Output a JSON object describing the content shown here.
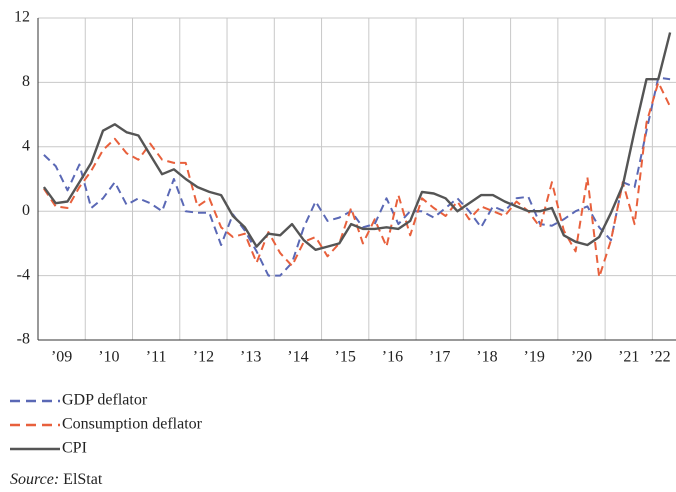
{
  "chart_data": {
    "type": "line",
    "x": [
      2009.125,
      2009.375,
      2009.625,
      2009.875,
      2010.125,
      2010.375,
      2010.625,
      2010.875,
      2011.125,
      2011.375,
      2011.625,
      2011.875,
      2012.125,
      2012.375,
      2012.625,
      2012.875,
      2013.125,
      2013.375,
      2013.625,
      2013.875,
      2014.125,
      2014.375,
      2014.625,
      2014.875,
      2015.125,
      2015.375,
      2015.625,
      2015.875,
      2016.125,
      2016.375,
      2016.625,
      2016.875,
      2017.125,
      2017.375,
      2017.625,
      2017.875,
      2018.125,
      2018.375,
      2018.625,
      2018.875,
      2019.125,
      2019.375,
      2019.625,
      2019.875,
      2020.125,
      2020.375,
      2020.625,
      2020.875,
      2021.125,
      2021.375,
      2021.625,
      2021.875,
      2022.125,
      2022.375
    ],
    "series": [
      {
        "name": "GDP deflator",
        "color": "#5a68b5",
        "dash": true,
        "values": [
          3.5,
          2.8,
          1.3,
          2.9,
          0.2,
          0.8,
          1.8,
          0.4,
          0.8,
          0.5,
          0.0,
          2.0,
          0.0,
          -0.1,
          -0.1,
          -2.1,
          -0.2,
          -1.2,
          -2.5,
          -4.0,
          -4.0,
          -3.2,
          -1.0,
          0.6,
          -0.6,
          -0.4,
          0.0,
          -1.0,
          -0.8,
          0.8,
          -0.8,
          0.0,
          0.0,
          -0.4,
          0.2,
          0.8,
          0.0,
          -1.0,
          0.3,
          0.0,
          0.8,
          0.9,
          -0.8,
          -0.9,
          -0.5,
          0.0,
          0.3,
          -1.0,
          -1.8,
          1.8,
          1.5,
          5.0,
          8.3,
          8.2
        ]
      },
      {
        "name": "Consumption deflator",
        "color": "#e8603c",
        "dash": true,
        "values": [
          1.4,
          0.3,
          0.2,
          1.5,
          2.5,
          3.8,
          4.5,
          3.6,
          3.2,
          4.2,
          3.2,
          3.0,
          3.0,
          0.3,
          0.8,
          -1.0,
          -1.6,
          -1.4,
          -3.2,
          -1.3,
          -2.6,
          -3.4,
          -1.9,
          -1.6,
          -2.8,
          -2.0,
          0.2,
          -2.0,
          -0.5,
          -2.2,
          1.0,
          -1.5,
          0.8,
          0.2,
          -0.3,
          0.6,
          -0.5,
          0.3,
          0.0,
          -0.3,
          0.6,
          0.0,
          -1.0,
          1.8,
          -1.2,
          -2.5,
          2.1,
          -4.1,
          -1.8,
          1.8,
          -0.8,
          5.5,
          8.0,
          6.5
        ]
      },
      {
        "name": "CPI",
        "color": "#555555",
        "dash": false,
        "values": [
          1.5,
          0.5,
          0.6,
          1.8,
          3.0,
          5.0,
          5.4,
          4.9,
          4.7,
          3.5,
          2.3,
          2.6,
          2.0,
          1.5,
          1.2,
          1.0,
          -0.3,
          -1.0,
          -2.2,
          -1.4,
          -1.5,
          -0.8,
          -1.8,
          -2.4,
          -2.2,
          -2.0,
          -0.8,
          -1.1,
          -1.1,
          -1.0,
          -1.1,
          -0.6,
          1.2,
          1.1,
          0.8,
          0.0,
          0.5,
          1.0,
          1.0,
          0.6,
          0.3,
          0.0,
          0.0,
          0.2,
          -1.5,
          -1.9,
          -2.1,
          -1.6,
          -0.1,
          1.6,
          5.0,
          8.2,
          8.2,
          11.1
        ]
      }
    ],
    "xlim": [
      2009,
      2022.5
    ],
    "xticks": [
      {
        "value": 2009.5,
        "label": "’09"
      },
      {
        "value": 2010.5,
        "label": "’10"
      },
      {
        "value": 2011.5,
        "label": "’11"
      },
      {
        "value": 2012.5,
        "label": "’12"
      },
      {
        "value": 2013.5,
        "label": "’13"
      },
      {
        "value": 2014.5,
        "label": "’14"
      },
      {
        "value": 2015.5,
        "label": "’15"
      },
      {
        "value": 2016.5,
        "label": "’16"
      },
      {
        "value": 2017.5,
        "label": "’17"
      },
      {
        "value": 2018.5,
        "label": "’18"
      },
      {
        "value": 2019.5,
        "label": "’19"
      },
      {
        "value": 2020.5,
        "label": "’20"
      },
      {
        "value": 2021.5,
        "label": "’21"
      },
      {
        "value": 2022.5,
        "label": "’22"
      }
    ],
    "ylim": [
      -8,
      12
    ],
    "yticks": [
      -8,
      -4,
      0,
      4,
      8,
      12
    ],
    "grid": true,
    "source_label": "Source:",
    "source": "ElStat"
  }
}
